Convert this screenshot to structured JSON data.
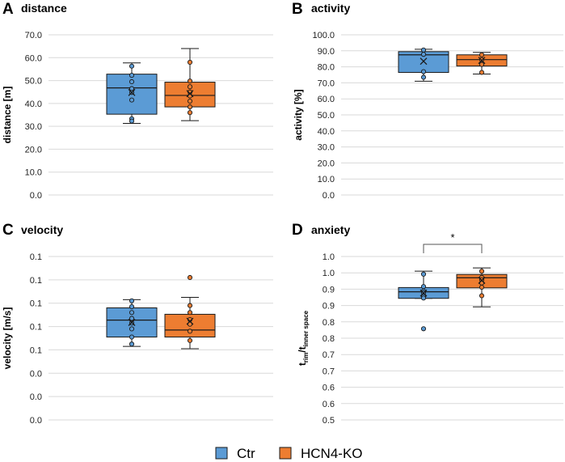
{
  "legend": {
    "items": [
      {
        "label": "Ctr",
        "color": "#5B9BD5"
      },
      {
        "label": "HCN4-KO",
        "color": "#ED7D31"
      }
    ]
  },
  "colors": {
    "ctr": "#5B9BD5",
    "ko": "#ED7D31",
    "stroke": "#1a1a1a",
    "grid": "#d9d9d9"
  },
  "chart_data": [
    {
      "letter": "A",
      "title": "distance",
      "type": "box",
      "ylabel": "distance [m]",
      "ylim": [
        0,
        70
      ],
      "ytick_labels": [
        "0.0",
        "10.0",
        "20.0",
        "30.0",
        "40.0",
        "50.0",
        "60.0",
        "70.0"
      ],
      "groups": [
        "Ctr",
        "HCN4-KO"
      ],
      "series": [
        {
          "name": "Ctr",
          "min": 31.3,
          "q1": 35.3,
          "median": 46.8,
          "q3": 52.8,
          "max": 57.7,
          "mean": 44.8,
          "points": [
            56.3,
            52.3,
            49.5,
            46.5,
            44.8,
            41.5,
            33.3,
            32.3
          ]
        },
        {
          "name": "HCN4-KO",
          "min": 32.5,
          "q1": 38.5,
          "median": 43.5,
          "q3": 49.3,
          "max": 64.0,
          "mean": 44.3,
          "points": [
            58.0,
            49.8,
            47.3,
            45.0,
            43.3,
            41.0,
            38.5,
            36.0
          ]
        }
      ]
    },
    {
      "letter": "B",
      "title": "activity",
      "type": "box",
      "ylabel": "activity [%]",
      "ylim": [
        0,
        100
      ],
      "ytick_labels": [
        "0.0",
        "10.0",
        "20.0",
        "30.0",
        "40.0",
        "50.0",
        "60.0",
        "70.0",
        "80.0",
        "90.0",
        "100.0"
      ],
      "groups": [
        "Ctr",
        "HCN4-KO"
      ],
      "series": [
        {
          "name": "Ctr",
          "min": 71.0,
          "q1": 76.5,
          "median": 87.5,
          "q3": 89.5,
          "max": 91.0,
          "mean": 83.5,
          "points": [
            90.5,
            87.8,
            77.0,
            73.5
          ]
        },
        {
          "name": "HCN4-KO",
          "min": 75.5,
          "q1": 80.5,
          "median": 84.5,
          "q3": 87.5,
          "max": 89.0,
          "mean": 84.0,
          "points": [
            87.5,
            84.5,
            81.5,
            76.5
          ]
        }
      ]
    },
    {
      "letter": "C",
      "title": "velocity",
      "type": "box",
      "ylabel": "velocity [m/s]",
      "ylim": [
        0,
        0.14
      ],
      "ytick_labels": [
        "0.0",
        "0.0",
        "0.0",
        "0.1",
        "0.1",
        "0.1",
        "0.1",
        "0.1"
      ],
      "groups": [
        "Ctr",
        "HCN4-KO"
      ],
      "series": [
        {
          "name": "Ctr",
          "min": 0.063,
          "q1": 0.071,
          "median": 0.0855,
          "q3": 0.096,
          "max": 0.103,
          "mean": 0.0835,
          "points": [
            0.102,
            0.097,
            0.092,
            0.087,
            0.083,
            0.078,
            0.071,
            0.065
          ]
        },
        {
          "name": "HCN4-KO",
          "min": 0.061,
          "q1": 0.071,
          "median": 0.077,
          "q3": 0.0905,
          "max": 0.105,
          "mean": 0.0845,
          "points": [
            0.122,
            0.098,
            0.092,
            0.086,
            0.082,
            0.076,
            0.068
          ]
        }
      ]
    },
    {
      "letter": "D",
      "title": "anxiety",
      "type": "box",
      "ylabel_main": "t",
      "ylabel_sub1": "rim",
      "ylabel_mid": "/t",
      "ylabel_sub2": "inner space",
      "ylim": [
        0.5,
        1.0
      ],
      "ytick_labels": [
        "0.5",
        "0.6",
        "0.6",
        "0.7",
        "0.7",
        "0.8",
        "0.8",
        "0.9",
        "0.9",
        "1.0",
        "1.0"
      ],
      "groups": [
        "Ctr",
        "HCN4-KO"
      ],
      "significance": "*",
      "series": [
        {
          "name": "Ctr",
          "min": 0.872,
          "q1": 0.872,
          "median": 0.892,
          "q3": 0.905,
          "max": 0.955,
          "mean": 0.888,
          "points": [
            0.946,
            0.908,
            0.894,
            0.889,
            0.878,
            0.873,
            0.779
          ]
        },
        {
          "name": "HCN4-KO",
          "min": 0.846,
          "q1": 0.904,
          "median": 0.935,
          "q3": 0.945,
          "max": 0.965,
          "mean": 0.927,
          "points": [
            0.955,
            0.936,
            0.929,
            0.919,
            0.906,
            0.88
          ]
        }
      ]
    }
  ]
}
